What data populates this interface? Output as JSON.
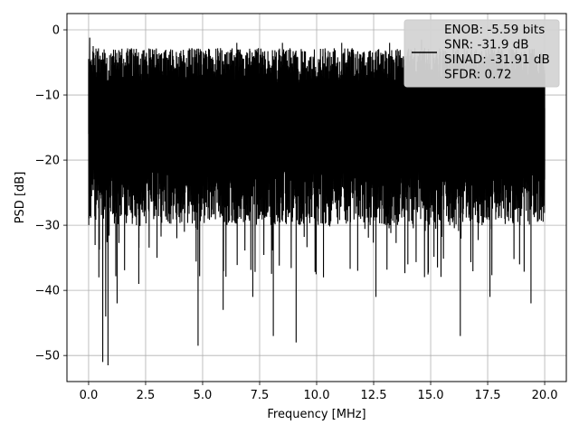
{
  "chart_data": {
    "type": "line",
    "title": "",
    "xlabel": "Frequency [MHz]",
    "ylabel": "PSD [dB]",
    "xlim": [
      -0.95,
      20.95
    ],
    "ylim": [
      -54,
      2.5
    ],
    "xticks": [
      0.0,
      2.5,
      5.0,
      7.5,
      10.0,
      12.5,
      15.0,
      17.5,
      20.0
    ],
    "xtick_labels": [
      "0.0",
      "2.5",
      "5.0",
      "7.5",
      "10.0",
      "12.5",
      "15.0",
      "17.5",
      "20.0"
    ],
    "yticks": [
      0,
      -10,
      -20,
      -30,
      -40,
      -50
    ],
    "ytick_labels": [
      "0",
      "−10",
      "−20",
      "−30",
      "−40",
      "−50"
    ],
    "grid": true,
    "legend_position": "top-right",
    "series": [
      {
        "color": "#000000",
        "note": "dense noise-like PSD spanning 0 to 20 MHz, mostly between about -3 and -28 dB",
        "x": [
          0.0,
          0.05,
          0.12,
          0.2,
          0.3,
          0.45,
          0.55,
          0.62,
          0.68,
          0.75,
          0.85,
          1.05,
          1.25,
          1.6,
          2.2,
          2.7,
          3.0,
          3.7,
          4.2,
          4.8,
          5.3,
          5.9,
          6.5,
          7.2,
          7.7,
          8.1,
          8.5,
          9.1,
          9.9,
          10.3,
          11.1,
          11.8,
          12.6,
          13.2,
          14.0,
          14.6,
          15.3,
          16.3,
          16.8,
          17.6,
          18.1,
          18.9,
          19.4,
          20.0
        ],
        "y": [
          -16,
          -1.2,
          -22,
          -2.5,
          -29,
          -38,
          -6,
          -51,
          -3,
          -44,
          -51.5,
          -4,
          -42,
          -5,
          -39,
          -3,
          -35,
          -4,
          -31,
          -48.5,
          -3,
          -43,
          -2,
          -41,
          -4,
          -47,
          -2,
          -48,
          -3,
          -38,
          -2,
          -37,
          -41,
          -2,
          -36,
          -1.5,
          -35,
          -47,
          -3,
          -41,
          -3,
          -36,
          -42,
          -23
        ]
      }
    ],
    "legend": {
      "entries": [
        "ENOB: -5.59 bits",
        "SNR: -31.9 dB",
        "SINAD: -31.91 dB",
        "SFDR: 0.72"
      ]
    }
  }
}
